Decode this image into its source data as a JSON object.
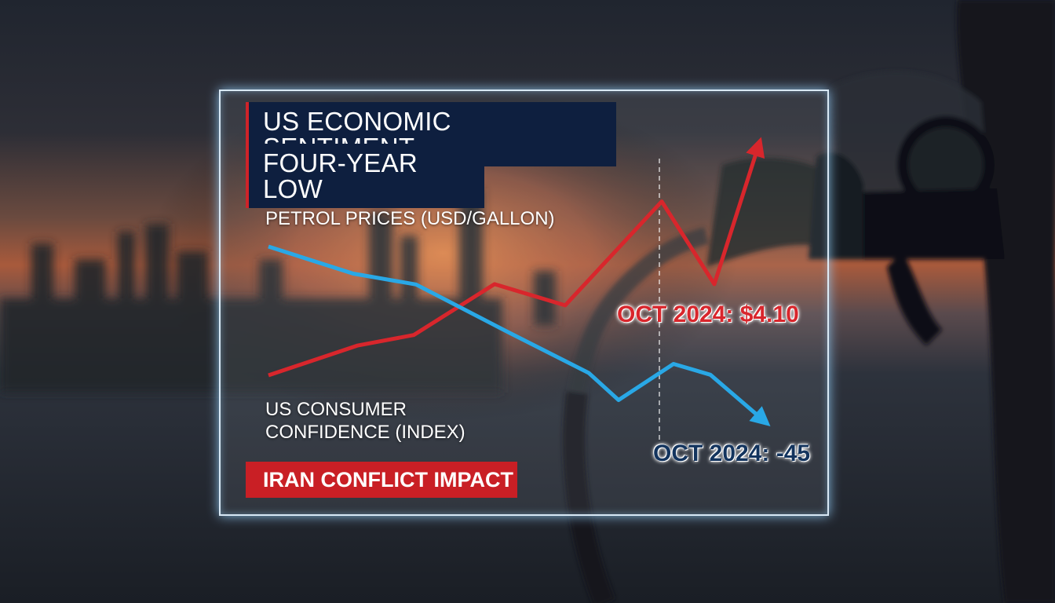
{
  "header": {
    "title_line1": "US ECONOMIC SENTIMENT",
    "title_line2": "FOUR-YEAR LOW"
  },
  "tag": "IRAN CONFLICT IMPACT",
  "colors": {
    "petrol": "#d8262c",
    "consumer": "#29a8e6",
    "title_bg": "#0e1f3f",
    "tag_bg": "#c91f25"
  },
  "chart_data": {
    "type": "line",
    "title": "US ECONOMIC SENTIMENT FOUR-YEAR LOW",
    "grid": false,
    "series": [
      {
        "name": "PETROL PRICES (USD/GALLON)",
        "values": [
          0,
          14,
          19,
          43,
          33,
          82,
          43,
          108
        ],
        "callout": "OCT 2024: $4.10"
      },
      {
        "name": "US CONSUMER CONFIDENCE (INDEX)",
        "values": [
          100,
          85,
          79,
          52,
          30,
          15,
          35,
          29,
          4
        ],
        "callout": "OCT 2024: -45"
      }
    ],
    "marker_label": ""
  }
}
